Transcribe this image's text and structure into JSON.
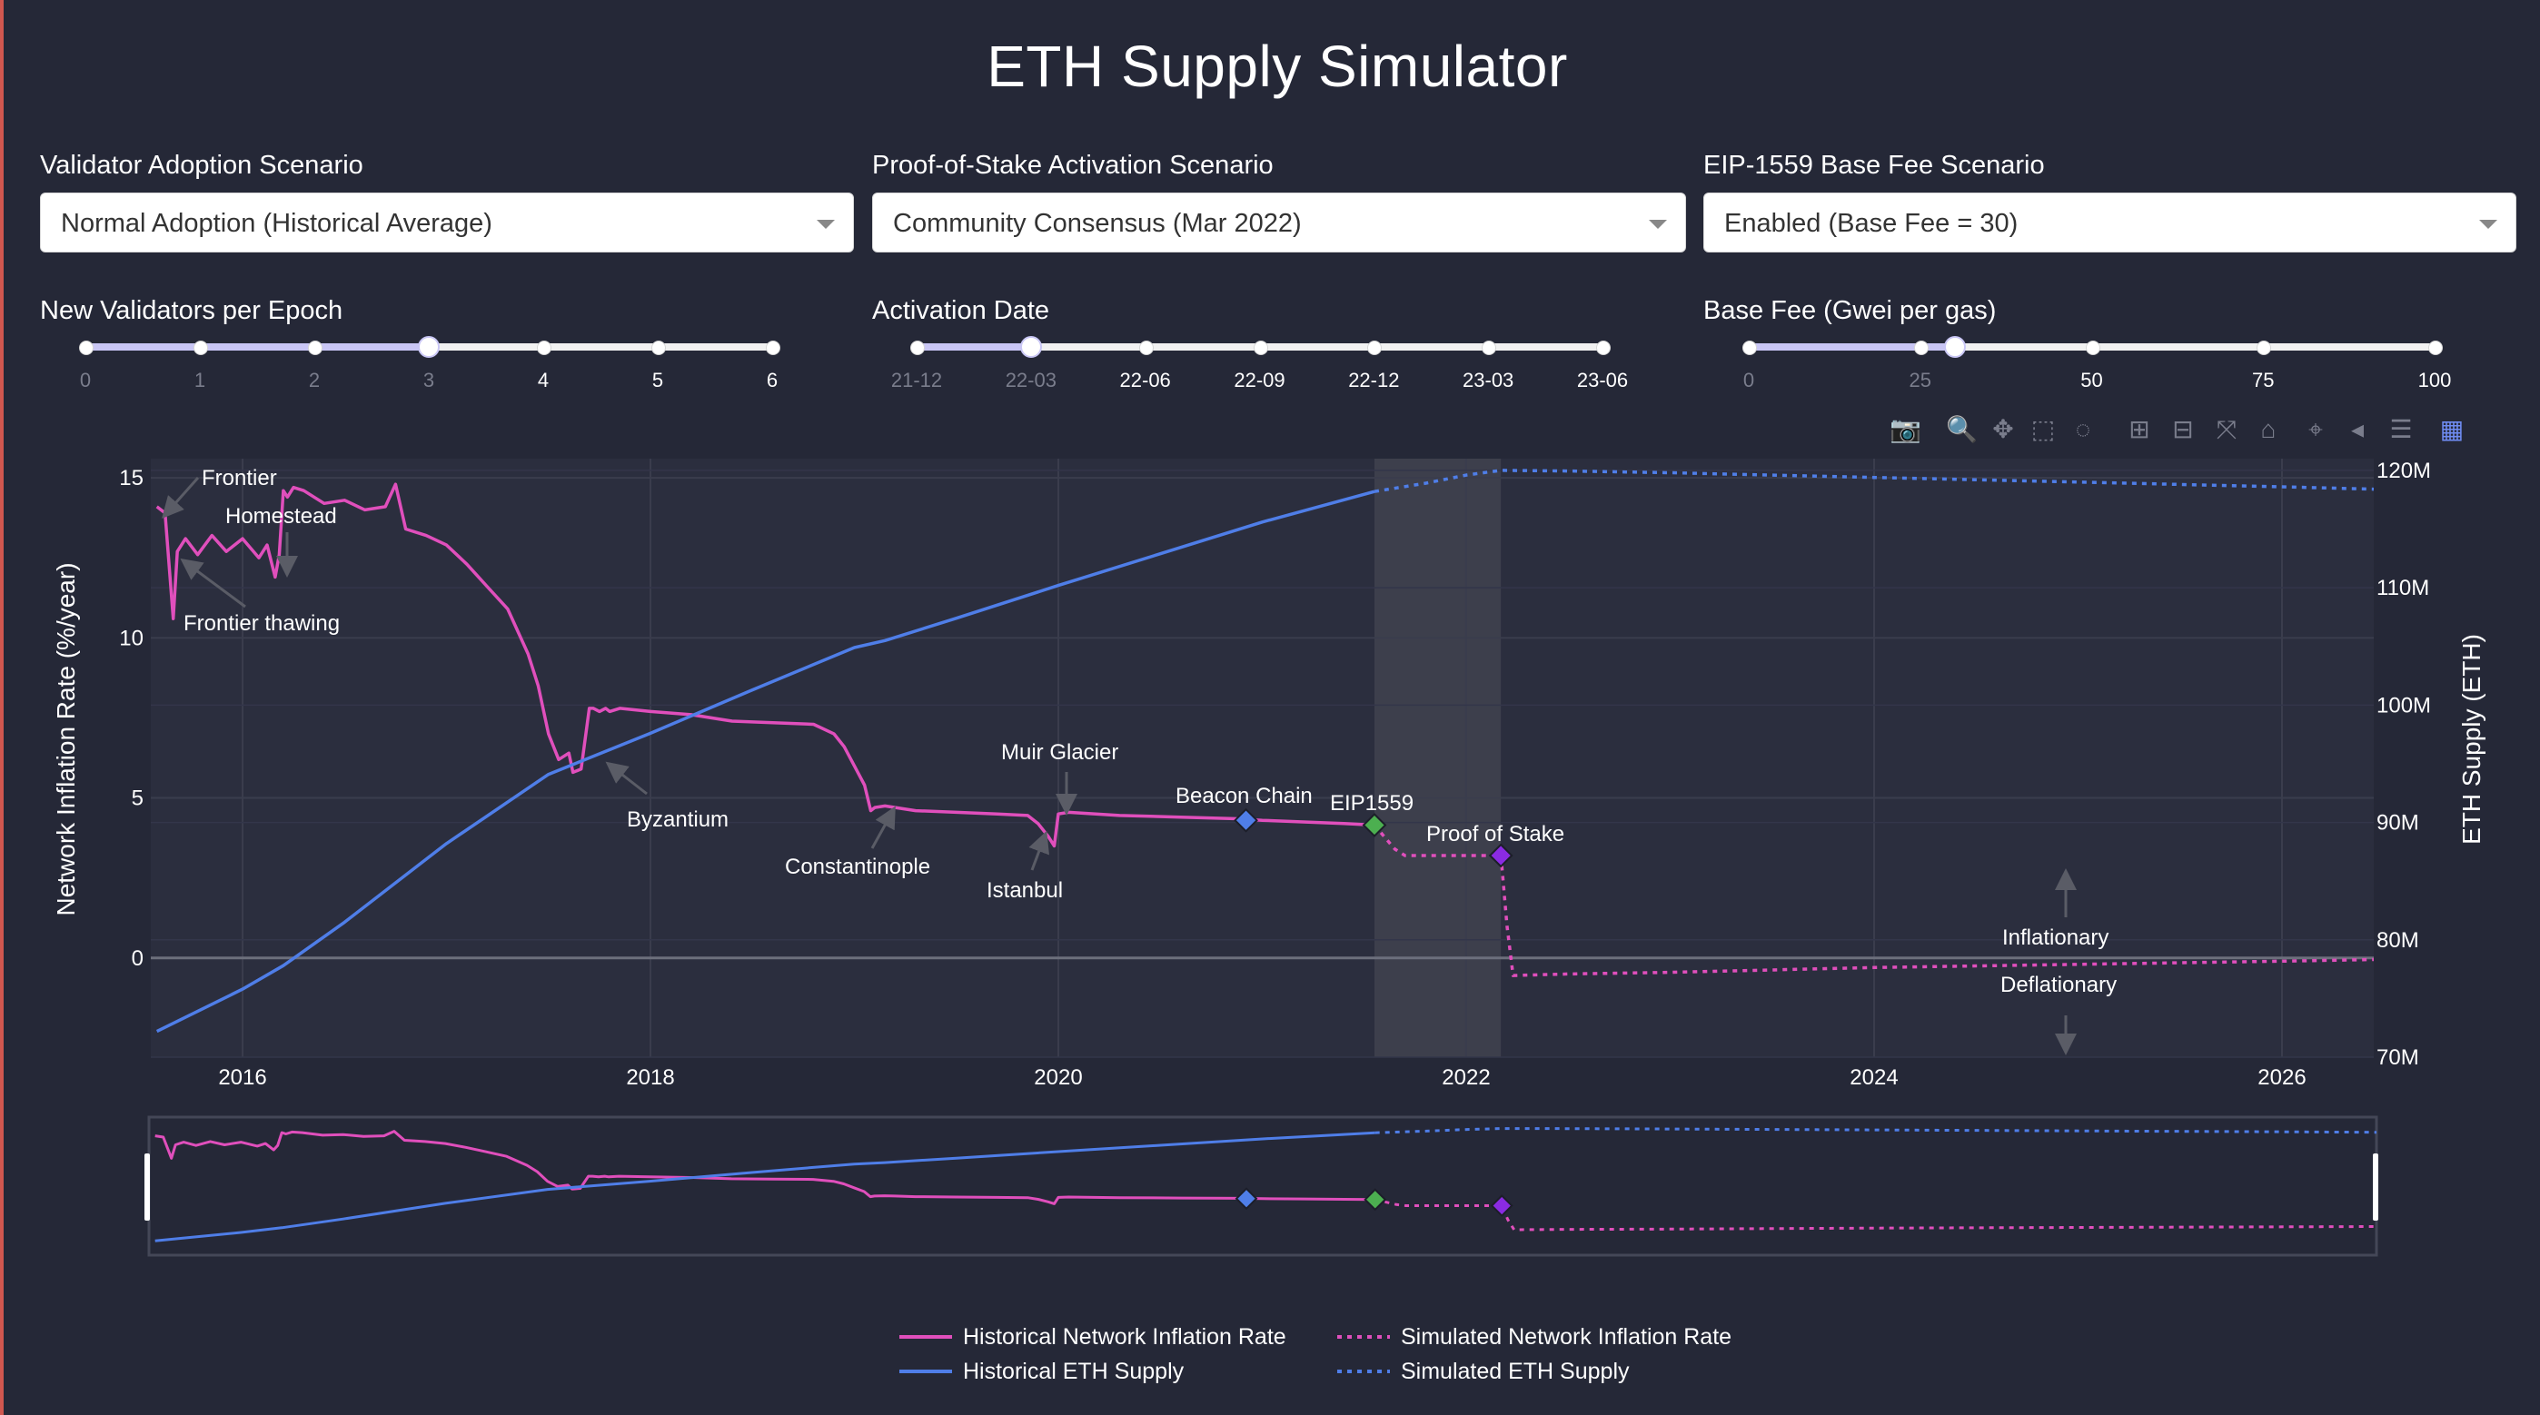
{
  "title": "ETH Supply Simulator",
  "controls": {
    "validator": {
      "label": "Validator Adoption Scenario",
      "value": "Normal Adoption (Historical Average)"
    },
    "pos": {
      "label": "Proof-of-Stake Activation Scenario",
      "value": "Community Consensus (Mar 2022)"
    },
    "eip": {
      "label": "EIP-1559 Base Fee Scenario",
      "value": "Enabled (Base Fee = 30)"
    }
  },
  "sliders": {
    "validators": {
      "label": "New Validators per Epoch",
      "marks": [
        "0",
        "1",
        "2",
        "3",
        "4",
        "5",
        "6"
      ],
      "value_index": 3
    },
    "activation": {
      "label": "Activation Date",
      "marks": [
        "21-12",
        "22-03",
        "22-06",
        "22-09",
        "22-12",
        "23-03",
        "23-06"
      ],
      "value_index": 1
    },
    "basefee": {
      "label": "Base Fee (Gwei per gas)",
      "marks": [
        "0",
        "25",
        "50",
        "75",
        "100"
      ],
      "value": 30,
      "max": 100
    }
  },
  "modebar": [
    "camera-icon",
    "zoom-icon",
    "pan-icon",
    "box-select-icon",
    "lasso-icon",
    "zoom-in-icon",
    "zoom-out-icon",
    "autoscale-icon",
    "reset-axes-icon",
    "spike-lines-icon",
    "hover-closest-icon",
    "hover-compare-icon",
    "plotly-logo-icon"
  ],
  "chart_data": {
    "type": "line",
    "title": "",
    "xlabel": "",
    "ylabel": "Network Inflation Rate (%/year)",
    "y2label": "ETH Supply (ETH)",
    "xlim": [
      2015.55,
      2026.45
    ],
    "ylim": [
      -3.1,
      15.6
    ],
    "y2lim": [
      70,
      121
    ],
    "xticks": [
      "2016",
      "2018",
      "2020",
      "2022",
      "2024",
      "2026"
    ],
    "yticks": [
      "0",
      "5",
      "10",
      "15"
    ],
    "y2ticks": [
      "70M",
      "80M",
      "90M",
      "100M",
      "110M",
      "120M"
    ],
    "shaded_region": [
      2021.55,
      2022.17
    ],
    "grid": true,
    "series": [
      {
        "name": "Historical Network Inflation Rate",
        "axis": "y",
        "color": "#e04fbc",
        "dash": "solid",
        "x": [
          2015.58,
          2015.62,
          2015.66,
          2015.68,
          2015.72,
          2015.78,
          2015.85,
          2015.92,
          2016.0,
          2016.08,
          2016.12,
          2016.16,
          2016.18,
          2016.2,
          2016.22,
          2016.25,
          2016.3,
          2016.4,
          2016.5,
          2016.6,
          2016.7,
          2016.75,
          2016.8,
          2016.9,
          2017.0,
          2017.1,
          2017.2,
          2017.3,
          2017.4,
          2017.45,
          2017.5,
          2017.55,
          2017.6,
          2017.62,
          2017.66,
          2017.7,
          2017.72,
          2017.75,
          2017.78,
          2017.8,
          2017.85,
          2018.0,
          2018.2,
          2018.4,
          2018.6,
          2018.8,
          2018.9,
          2018.95,
          2019.0,
          2019.05,
          2019.08,
          2019.1,
          2019.15,
          2019.2,
          2019.3,
          2019.5,
          2019.7,
          2019.85,
          2019.9,
          2019.95,
          2019.98,
          2020.0,
          2020.05,
          2020.3,
          2020.6,
          2020.88,
          2021.0,
          2021.2,
          2021.4,
          2021.55
        ],
        "y": [
          14.1,
          13.9,
          10.6,
          12.7,
          13.1,
          12.6,
          13.2,
          12.7,
          13.1,
          12.5,
          12.9,
          11.9,
          12.6,
          14.6,
          14.4,
          14.7,
          14.6,
          14.2,
          14.3,
          14.0,
          14.1,
          14.8,
          13.4,
          13.2,
          12.9,
          12.3,
          11.6,
          10.9,
          9.5,
          8.5,
          7.0,
          6.2,
          6.4,
          5.8,
          5.9,
          7.8,
          7.8,
          7.7,
          7.8,
          7.7,
          7.8,
          7.7,
          7.6,
          7.4,
          7.35,
          7.3,
          7.0,
          6.6,
          6.0,
          5.4,
          4.6,
          4.7,
          4.75,
          4.7,
          4.6,
          4.55,
          4.5,
          4.45,
          4.2,
          3.8,
          3.5,
          4.5,
          4.55,
          4.45,
          4.4,
          4.35,
          4.3,
          4.25,
          4.2,
          4.15
        ]
      },
      {
        "name": "Simulated Network Inflation Rate",
        "axis": "y",
        "color": "#e04fbc",
        "dash": "dot",
        "x": [
          2021.55,
          2021.65,
          2021.7,
          2021.75,
          2022.0,
          2022.17,
          2022.2,
          2022.23,
          2022.5,
          2023.0,
          2024.0,
          2025.0,
          2026.0,
          2026.45
        ],
        "y": [
          4.15,
          3.4,
          3.2,
          3.2,
          3.2,
          3.2,
          1.0,
          -0.55,
          -0.5,
          -0.45,
          -0.3,
          -0.2,
          -0.1,
          -0.05
        ]
      },
      {
        "name": "Historical ETH Supply",
        "axis": "y2",
        "color": "#4f7ee8",
        "dash": "solid",
        "x": [
          2015.58,
          2016.0,
          2016.2,
          2016.5,
          2017.0,
          2017.5,
          2018.0,
          2018.5,
          2019.0,
          2019.15,
          2019.5,
          2020.0,
          2020.5,
          2021.0,
          2021.55
        ],
        "y": [
          72.2,
          75.8,
          77.8,
          81.5,
          88.2,
          94.1,
          97.6,
          101.3,
          104.9,
          105.5,
          107.4,
          110.2,
          112.9,
          115.6,
          118.2
        ]
      },
      {
        "name": "Simulated ETH Supply",
        "axis": "y2",
        "color": "#4f7ee8",
        "dash": "dot",
        "x": [
          2021.55,
          2021.8,
          2022.0,
          2022.17,
          2022.5,
          2023.0,
          2024.0,
          2025.0,
          2026.0,
          2026.45
        ],
        "y": [
          118.2,
          118.9,
          119.6,
          120.0,
          119.95,
          119.8,
          119.4,
          119.0,
          118.6,
          118.4
        ]
      }
    ],
    "markers": [
      {
        "x": 2020.92,
        "y": 4.3,
        "color": "#4f7ee8",
        "label": "Beacon Chain"
      },
      {
        "x": 2021.55,
        "y": 4.15,
        "color": "#4caf50",
        "label": "EIP1559"
      },
      {
        "x": 2022.17,
        "y": 3.2,
        "color": "#8a2be2",
        "label": "Proof of Stake"
      }
    ],
    "annotations": [
      "Frontier",
      "Homestead",
      "Frontier thawing",
      "Byzantium",
      "Constantinople",
      "Istanbul",
      "Muir Glacier",
      "Inflationary",
      "Deflationary"
    ],
    "legend": {
      "placement": "bottom-center"
    }
  }
}
